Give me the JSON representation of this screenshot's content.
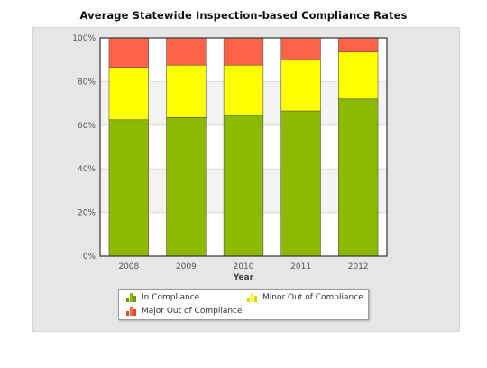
{
  "title": "Average Statewide Inspection-based Compliance Rates",
  "chart_data": {
    "type": "bar",
    "stacked": true,
    "title": "Average Statewide Inspection-based Compliance Rates",
    "xlabel": "Year",
    "ylabel": "",
    "categories": [
      "2008",
      "2009",
      "2010",
      "2011",
      "2012"
    ],
    "y_ticks": [
      "0%",
      "20%",
      "40%",
      "60%",
      "80%",
      "100%"
    ],
    "ylim": [
      0,
      100
    ],
    "series": [
      {
        "name": "In Compliance",
        "color": "#8dba00",
        "values": [
          62.5,
          63.5,
          64.5,
          66.5,
          72
        ]
      },
      {
        "name": "Minor Out of Compliance",
        "color": "#ffff00",
        "values": [
          24,
          24,
          23,
          23.5,
          21.5
        ]
      },
      {
        "name": "Major Out of Compliance",
        "color": "#ff6347",
        "values": [
          13.5,
          12.5,
          12.5,
          10,
          6.5
        ]
      }
    ],
    "grid": true,
    "legend_position": "bottom"
  }
}
